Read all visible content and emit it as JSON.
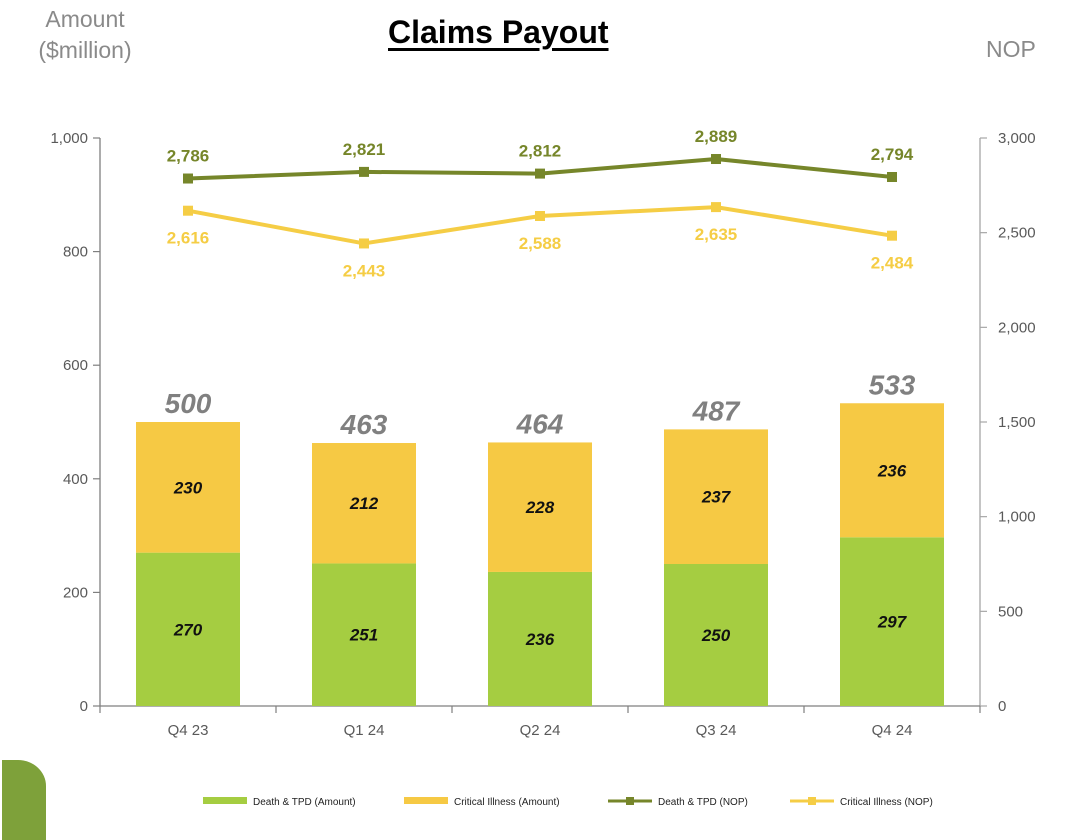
{
  "title": "Claims Payout",
  "left_axis_title": [
    "Amount",
    "($million)"
  ],
  "right_axis_title": "NOP",
  "colors": {
    "death_tpd_bar": "#a5cd41",
    "critical_illness_bar": "#f6c944",
    "death_tpd_line": "#76862a",
    "critical_illness_line": "#f5cd45",
    "total_label": "#808080",
    "axis": "#7f7f7f",
    "tick_text": "#595959"
  },
  "chart_data": {
    "type": "bar",
    "stacked": true,
    "categories": [
      "Q4 23",
      "Q1 24",
      "Q2 24",
      "Q3 24",
      "Q4 24"
    ],
    "series": [
      {
        "name": "Death & TPD (Amount)",
        "type": "bar",
        "axis": "left",
        "values": [
          270,
          251,
          236,
          250,
          297
        ],
        "labels": [
          "270",
          "251",
          "236",
          "250",
          "297"
        ]
      },
      {
        "name": "Critical Illness (Amount)",
        "type": "bar",
        "axis": "left",
        "values": [
          230,
          212,
          228,
          237,
          236
        ],
        "labels": [
          "230",
          "212",
          "228",
          "237",
          "236"
        ]
      },
      {
        "name": "Death & TPD (NOP)",
        "type": "line",
        "axis": "right",
        "values": [
          2786,
          2821,
          2812,
          2889,
          2794
        ],
        "labels": [
          "2,786",
          "2,821",
          "2,812",
          "2,889",
          "2,794"
        ]
      },
      {
        "name": "Critical Illness (NOP)",
        "type": "line",
        "axis": "right",
        "values": [
          2616,
          2443,
          2588,
          2635,
          2484
        ],
        "labels": [
          "2,616",
          "2,443",
          "2,588",
          "2,635",
          "2,484"
        ]
      }
    ],
    "totals": [
      500,
      463,
      464,
      487,
      533
    ],
    "total_labels": [
      "500",
      "463",
      "464",
      "487",
      "533"
    ],
    "left_axis": {
      "range": [
        0,
        1000
      ],
      "ticks": [
        0,
        200,
        400,
        600,
        800,
        1000
      ],
      "tick_labels": [
        "0",
        "200",
        "400",
        "600",
        "800",
        "1,000"
      ]
    },
    "right_axis": {
      "range": [
        0,
        3000
      ],
      "ticks": [
        0,
        500,
        1000,
        1500,
        2000,
        2500,
        3000
      ],
      "tick_labels": [
        "0",
        "500",
        "1,000",
        "1,500",
        "2,000",
        "2,500",
        "3,000"
      ]
    },
    "grid": false,
    "legend_position": "bottom"
  }
}
